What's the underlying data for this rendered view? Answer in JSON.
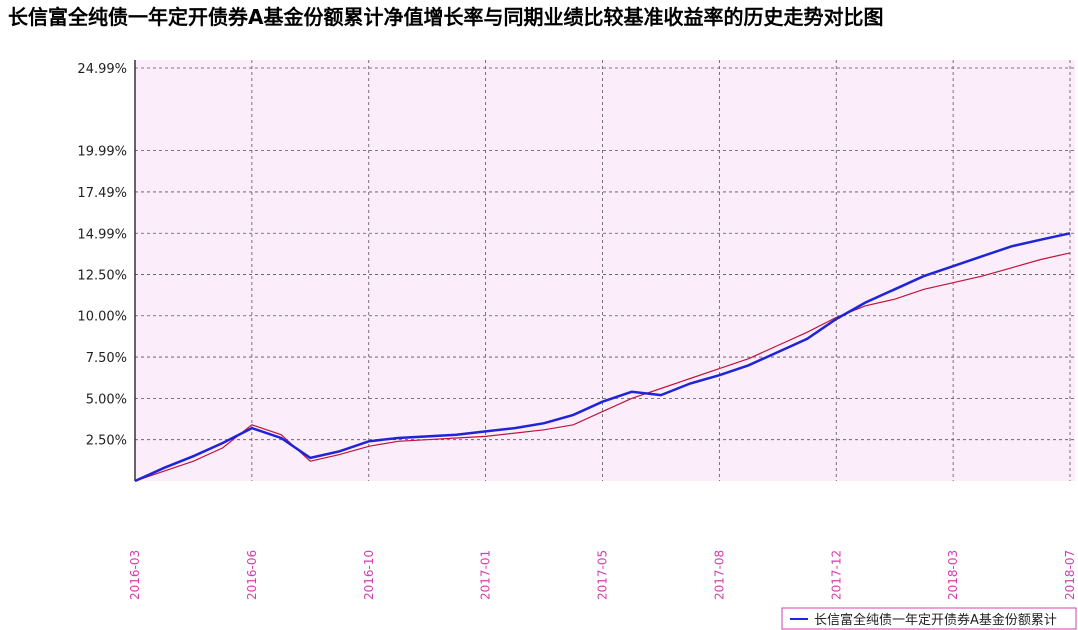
{
  "chart_data": {
    "type": "line",
    "title": "长信富全纯债一年定开债券A基金份额累计净值增长率与同期业绩比较基准收益率的历史走势对比图",
    "categories": [
      "2016-03",
      null,
      null,
      null,
      "2016-06",
      null,
      null,
      null,
      "2016-10",
      null,
      null,
      null,
      "2017-01",
      null,
      null,
      null,
      "2017-05",
      null,
      null,
      null,
      "2017-08",
      null,
      null,
      null,
      "2017-12",
      null,
      null,
      null,
      "2018-03",
      null,
      null,
      null,
      "2018-07"
    ],
    "series": [
      {
        "name": "长信富全纯债一年定开债券A基金份额累计",
        "color": "#1f24d8",
        "values": [
          0,
          0.8,
          1.5,
          2.3,
          3.2,
          2.6,
          1.4,
          1.8,
          2.4,
          2.6,
          2.7,
          2.8,
          3.0,
          3.2,
          3.5,
          4.0,
          4.8,
          5.4,
          5.2,
          5.9,
          6.4,
          7.0,
          7.8,
          8.6,
          9.8,
          10.8,
          11.6,
          12.4,
          13.0,
          13.6,
          14.2,
          14.6,
          14.99
        ]
      },
      {
        "color": "#c0143c",
        "values": [
          0,
          0.6,
          1.2,
          2.0,
          3.4,
          2.8,
          1.2,
          1.6,
          2.1,
          2.4,
          2.5,
          2.6,
          2.7,
          2.9,
          3.1,
          3.4,
          4.2,
          5.0,
          5.6,
          6.2,
          6.8,
          7.4,
          8.2,
          9.0,
          9.9,
          10.6,
          11.0,
          11.6,
          12.0,
          12.4,
          12.9,
          13.4,
          13.8
        ]
      }
    ],
    "ylim": [
      0,
      24.99
    ],
    "yticks": [
      {
        "value": 2.5,
        "label": "2.50%"
      },
      {
        "value": 5.0,
        "label": "5.00%"
      },
      {
        "value": 7.5,
        "label": "7.50%"
      },
      {
        "value": 10.0,
        "label": "10.00%"
      },
      {
        "value": 12.5,
        "label": "12.50%"
      },
      {
        "value": 14.99,
        "label": "14.99%"
      },
      {
        "value": 17.49,
        "label": "17.49%"
      },
      {
        "value": 19.99,
        "label": "19.99%"
      },
      {
        "value": 24.99,
        "label": "24.99%"
      }
    ],
    "grid": true
  }
}
